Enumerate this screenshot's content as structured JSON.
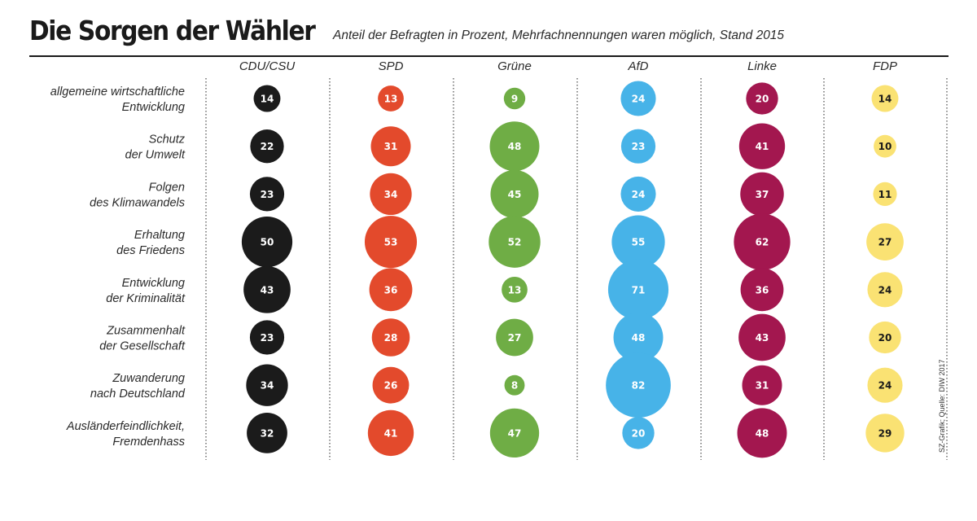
{
  "header": {
    "title": "Die Sorgen der Wähler",
    "subtitle": "Anteil der Befragten in Prozent, Mehrfachnennungen waren möglich, Stand 2015"
  },
  "source": "SZ-Grafik; Quelle: DIW 2017",
  "chart_data": {
    "type": "bubble-table",
    "title": "Die Sorgen der Wähler",
    "subtitle": "Anteil der Befragten in Prozent, Mehrfachnennungen waren möglich, Stand 2015",
    "unit": "%",
    "parties": [
      {
        "name": "CDU/CSU",
        "color": "#1b1b1b",
        "text_color": "#ffffff"
      },
      {
        "name": "SPD",
        "color": "#e34a2c",
        "text_color": "#ffffff"
      },
      {
        "name": "Grüne",
        "color": "#6fad45",
        "text_color": "#ffffff"
      },
      {
        "name": "AfD",
        "color": "#47b3e8",
        "text_color": "#ffffff"
      },
      {
        "name": "Linke",
        "color": "#a3174f",
        "text_color": "#ffffff"
      },
      {
        "name": "FDP",
        "color": "#fae273",
        "text_color": "#1a1a1a"
      }
    ],
    "concerns": [
      {
        "label": [
          "allgemeine wirtschaftliche",
          "Entwicklung"
        ],
        "values": [
          14,
          13,
          9,
          24,
          20,
          14
        ]
      },
      {
        "label": [
          "Schutz",
          "der Umwelt"
        ],
        "values": [
          22,
          31,
          48,
          23,
          41,
          10
        ]
      },
      {
        "label": [
          "Folgen",
          "des Klimawandels"
        ],
        "values": [
          23,
          34,
          45,
          24,
          37,
          11
        ]
      },
      {
        "label": [
          "Erhaltung",
          "des Friedens"
        ],
        "values": [
          50,
          53,
          52,
          55,
          62,
          27
        ]
      },
      {
        "label": [
          "Entwicklung",
          "der Kriminalität"
        ],
        "values": [
          43,
          36,
          13,
          71,
          36,
          24
        ]
      },
      {
        "label": [
          "Zusammenhalt",
          "der Gesellschaft"
        ],
        "values": [
          23,
          28,
          27,
          48,
          43,
          20
        ]
      },
      {
        "label": [
          "Zuwanderung",
          "nach Deutschland"
        ],
        "values": [
          34,
          26,
          8,
          82,
          31,
          24
        ]
      },
      {
        "label": [
          "Ausländerfeindlichkeit,",
          "Fremdenhass"
        ],
        "values": [
          32,
          41,
          47,
          20,
          48,
          29
        ]
      }
    ]
  }
}
